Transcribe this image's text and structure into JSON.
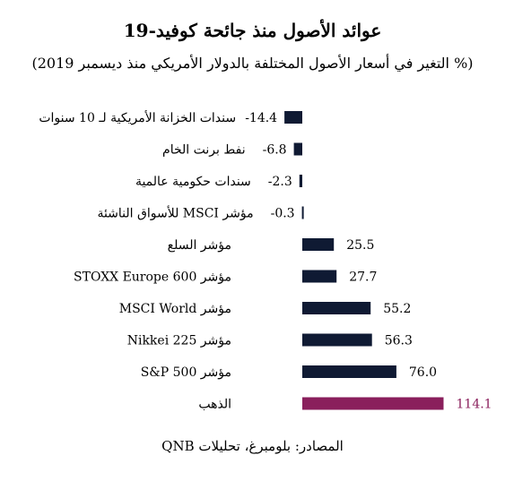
{
  "chart_data": {
    "type": "bar",
    "orientation": "horizontal",
    "title": "عوائد الأصول منذ جائحة كوفيد-19",
    "subtitle": "(% التغير في أسعار الأصول المختلفة بالدولار الأمريكي منذ ديسمبر 2019)",
    "categories": [
      "سندات الخزانة الأمريكية لـ 10 سنوات",
      "نفط برنت الخام",
      "سندات حكومية عالمية",
      "مؤشر MSCI للأسواق الناشئة",
      "مؤشر السلع",
      "مؤشر STOXX Europe 600",
      "مؤشر MSCI World",
      "مؤشر Nikkei 225",
      "مؤشر S&P 500",
      "الذهب"
    ],
    "values": [
      -14.4,
      -6.8,
      -2.3,
      -0.3,
      25.5,
      27.7,
      55.2,
      56.3,
      76.0,
      114.1
    ],
    "value_labels": [
      "-14.4",
      "-6.8",
      "-2.3",
      "-0.3",
      "25.5",
      "27.7",
      "55.2",
      "56.3",
      "76.0",
      "114.1"
    ],
    "highlight_index": 9,
    "colors": {
      "bar": "#0f1a33",
      "highlight": "#8a1f5c",
      "label": "#000000"
    },
    "grid": false,
    "legend": "none"
  },
  "source": "المصادر: بلومبرغ، تحليلات QNB"
}
